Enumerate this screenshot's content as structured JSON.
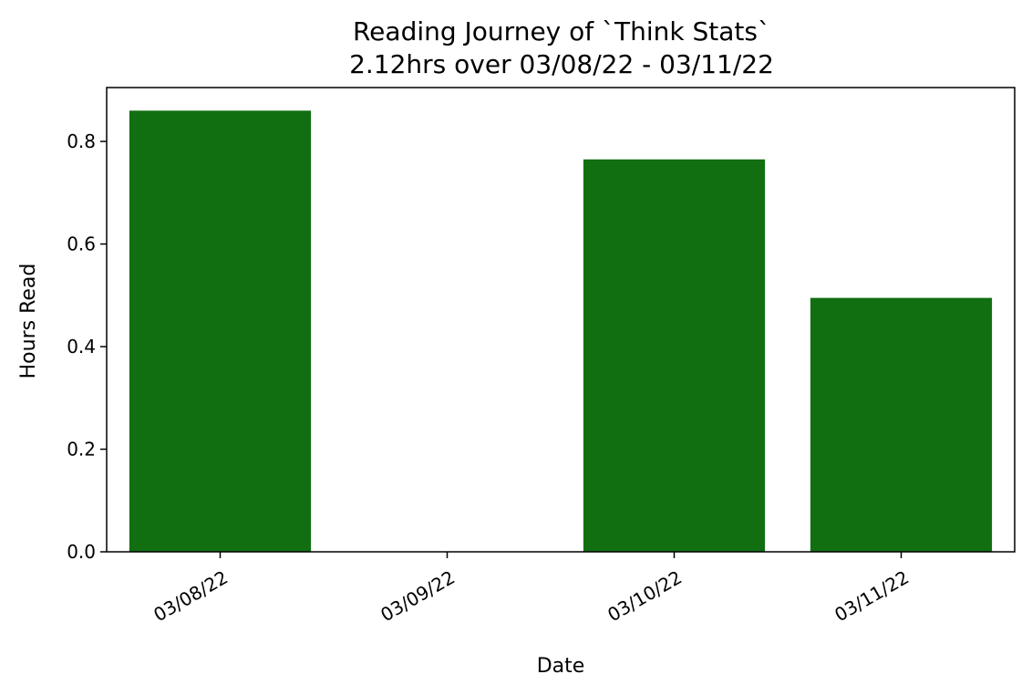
{
  "chart_data": {
    "type": "bar",
    "title": "Reading Journey of `Think Stats`",
    "subtitle": "2.12hrs over 03/08/22 - 03/11/22",
    "xlabel": "Date",
    "ylabel": "Hours Read",
    "categories": [
      "03/08/22",
      "03/09/22",
      "03/10/22",
      "03/11/22"
    ],
    "values": [
      0.86,
      0.0,
      0.765,
      0.495
    ],
    "ylim": [
      0,
      0.905
    ],
    "yticks": [
      0.0,
      0.2,
      0.4,
      0.6,
      0.8
    ],
    "ytick_labels": [
      "0.0",
      "0.2",
      "0.4",
      "0.6",
      "0.8"
    ],
    "bar_color": "#116f11",
    "grid": false,
    "legend": "none"
  }
}
